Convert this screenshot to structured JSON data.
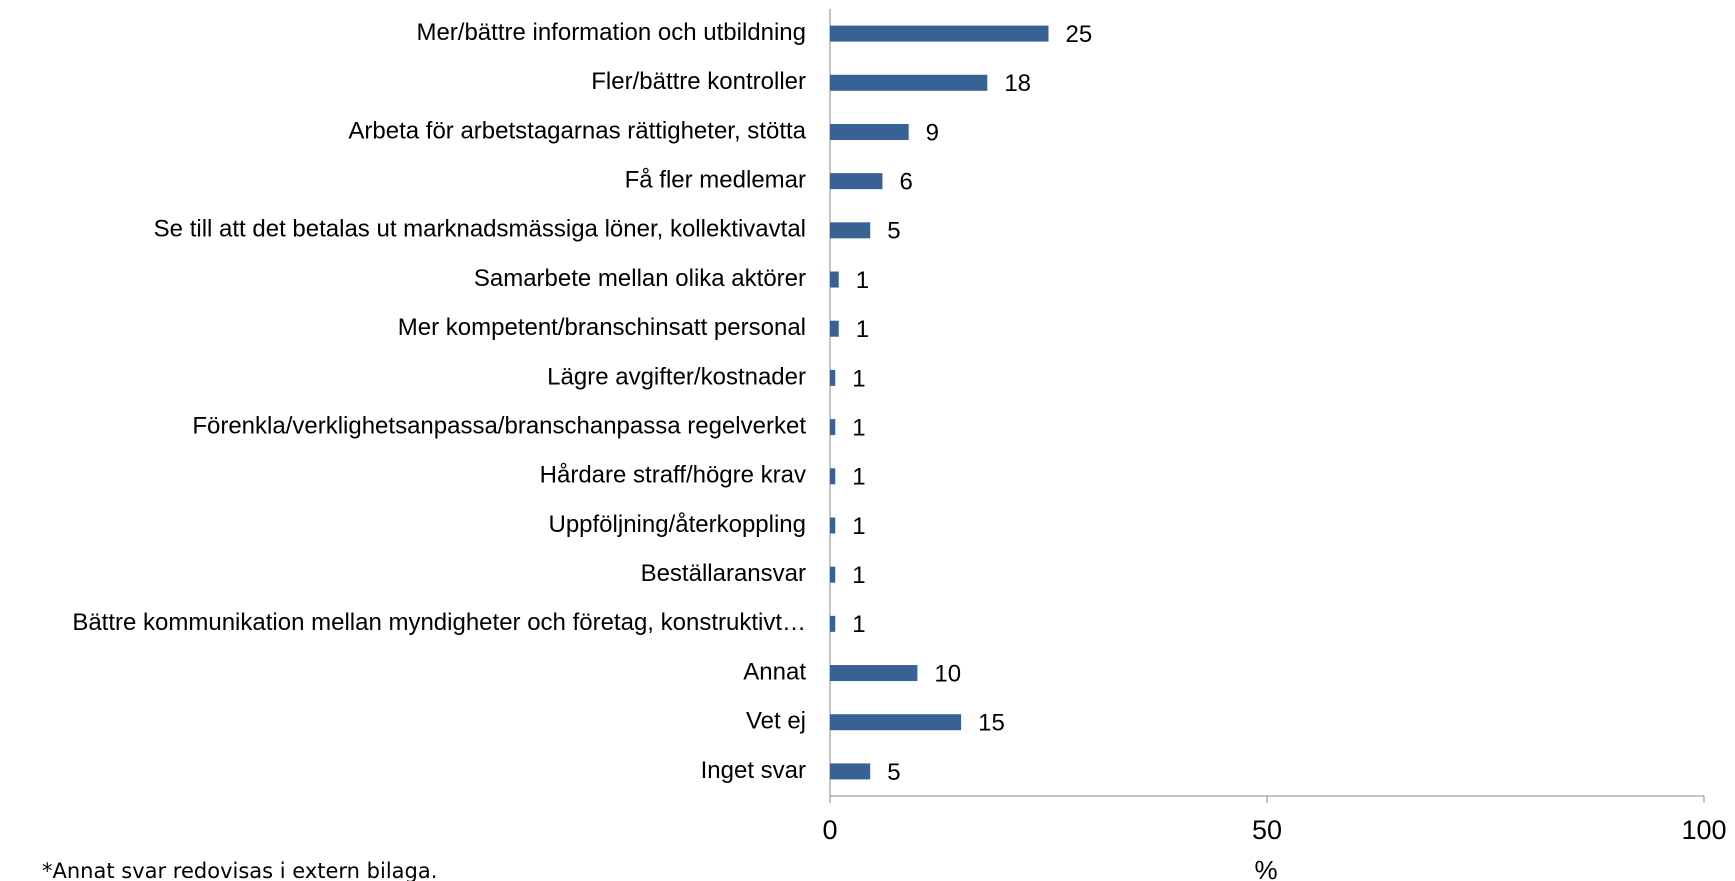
{
  "chart_data": {
    "type": "bar",
    "orientation": "horizontal",
    "categories": [
      "Mer/bättre information och utbildning",
      "Fler/bättre kontroller",
      "Arbeta för arbetstagarnas rättigheter, stötta",
      "Få fler medlemar",
      "Se till  att det betalas ut marknadsmässiga löner, kollektivavtal",
      "Samarbete mellan olika aktörer",
      "Mer kompetent/branschinsatt personal",
      "Lägre avgifter/kostnader",
      "Förenkla/verklighetsanpassa/branschanpassa regelverket",
      "Hårdare straff/högre krav",
      "Uppföljning/återkoppling",
      "Beställaransvar",
      "Bättre kommunikation mellan myndigheter och företag, konstruktivt…",
      "Annat",
      "Vet ej",
      "Inget svar"
    ],
    "values": [
      25,
      18,
      9,
      6,
      4.6,
      1,
      1,
      0.6,
      0.6,
      0.6,
      0.6,
      0.6,
      0.6,
      10,
      15,
      4.6
    ],
    "value_labels": [
      "25",
      "18",
      "9",
      "6",
      "5",
      "1",
      "1",
      "1",
      "1",
      "1",
      "1",
      "1",
      "1",
      "10",
      "15",
      "5"
    ],
    "color": "#386194",
    "xlim": [
      0,
      100
    ],
    "xticks": [
      0,
      50,
      100
    ],
    "xlabel": "%",
    "footnote": "*Annat svar redovisas i extern bilaga."
  }
}
